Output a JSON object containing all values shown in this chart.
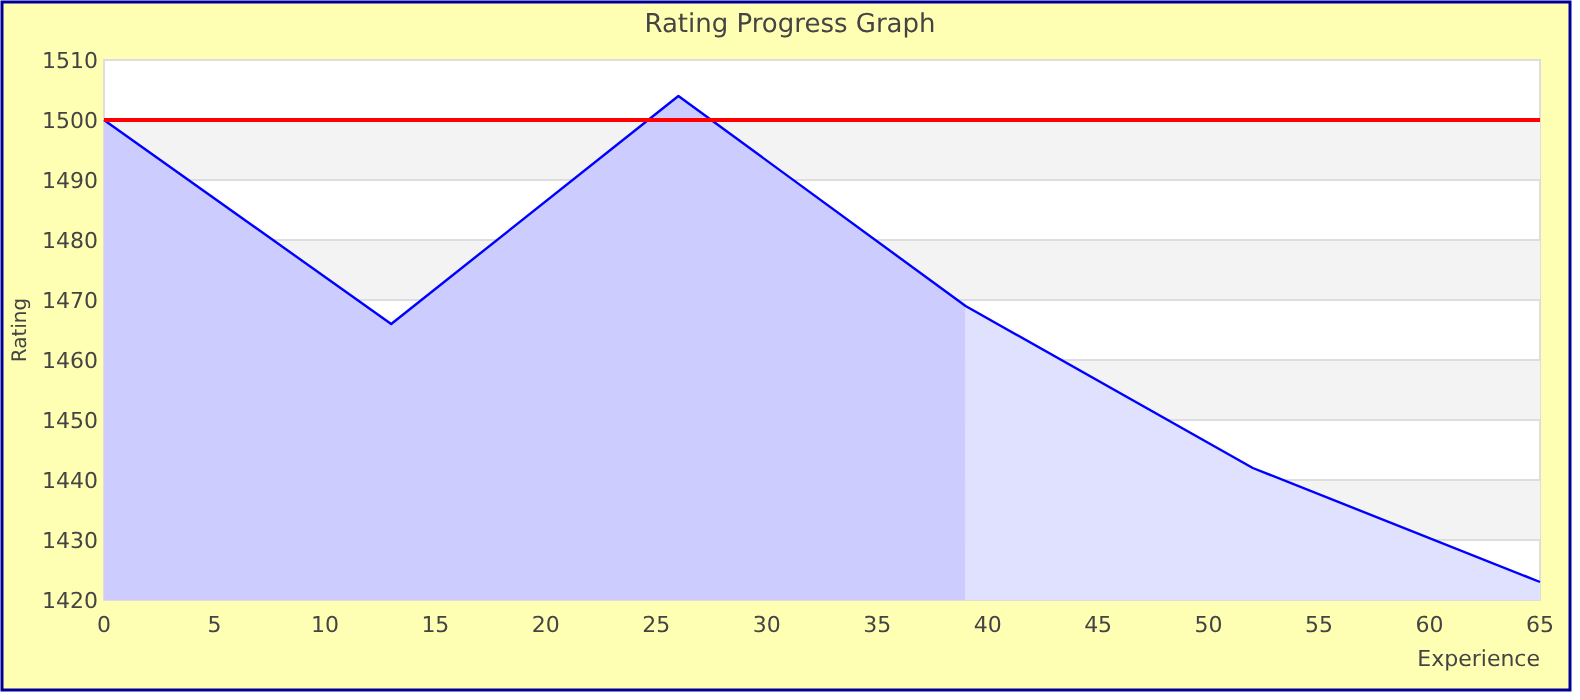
{
  "chart_data": {
    "type": "area",
    "title": "Rating Progress Graph",
    "xlabel": "Experience",
    "ylabel": "Rating",
    "xlim": [
      0,
      65
    ],
    "xticks": [
      0,
      5,
      10,
      15,
      20,
      25,
      30,
      35,
      40,
      45,
      50,
      55,
      60,
      65
    ],
    "ylim": [
      1420,
      1510
    ],
    "yticks": [
      1420,
      1430,
      1440,
      1450,
      1460,
      1470,
      1480,
      1490,
      1500,
      1510
    ],
    "grid": "y",
    "ref_lines": [
      {
        "axis": "y",
        "value": 1500,
        "color": "#ff0000"
      }
    ],
    "series": [
      {
        "color": "#ccccff",
        "x": [
          0,
          13,
          26,
          39
        ],
        "values": [
          1500,
          1466,
          1504,
          1469
        ]
      },
      {
        "color": "#e0e0ff",
        "x": [
          39,
          52,
          65
        ],
        "values": [
          1469,
          1442,
          1423
        ]
      },
      {
        "type": "line",
        "color": "#0000ff",
        "x": [
          0,
          13,
          26,
          39,
          52,
          65
        ],
        "values": [
          1500,
          1466,
          1504,
          1469,
          1442,
          1423
        ]
      }
    ]
  }
}
